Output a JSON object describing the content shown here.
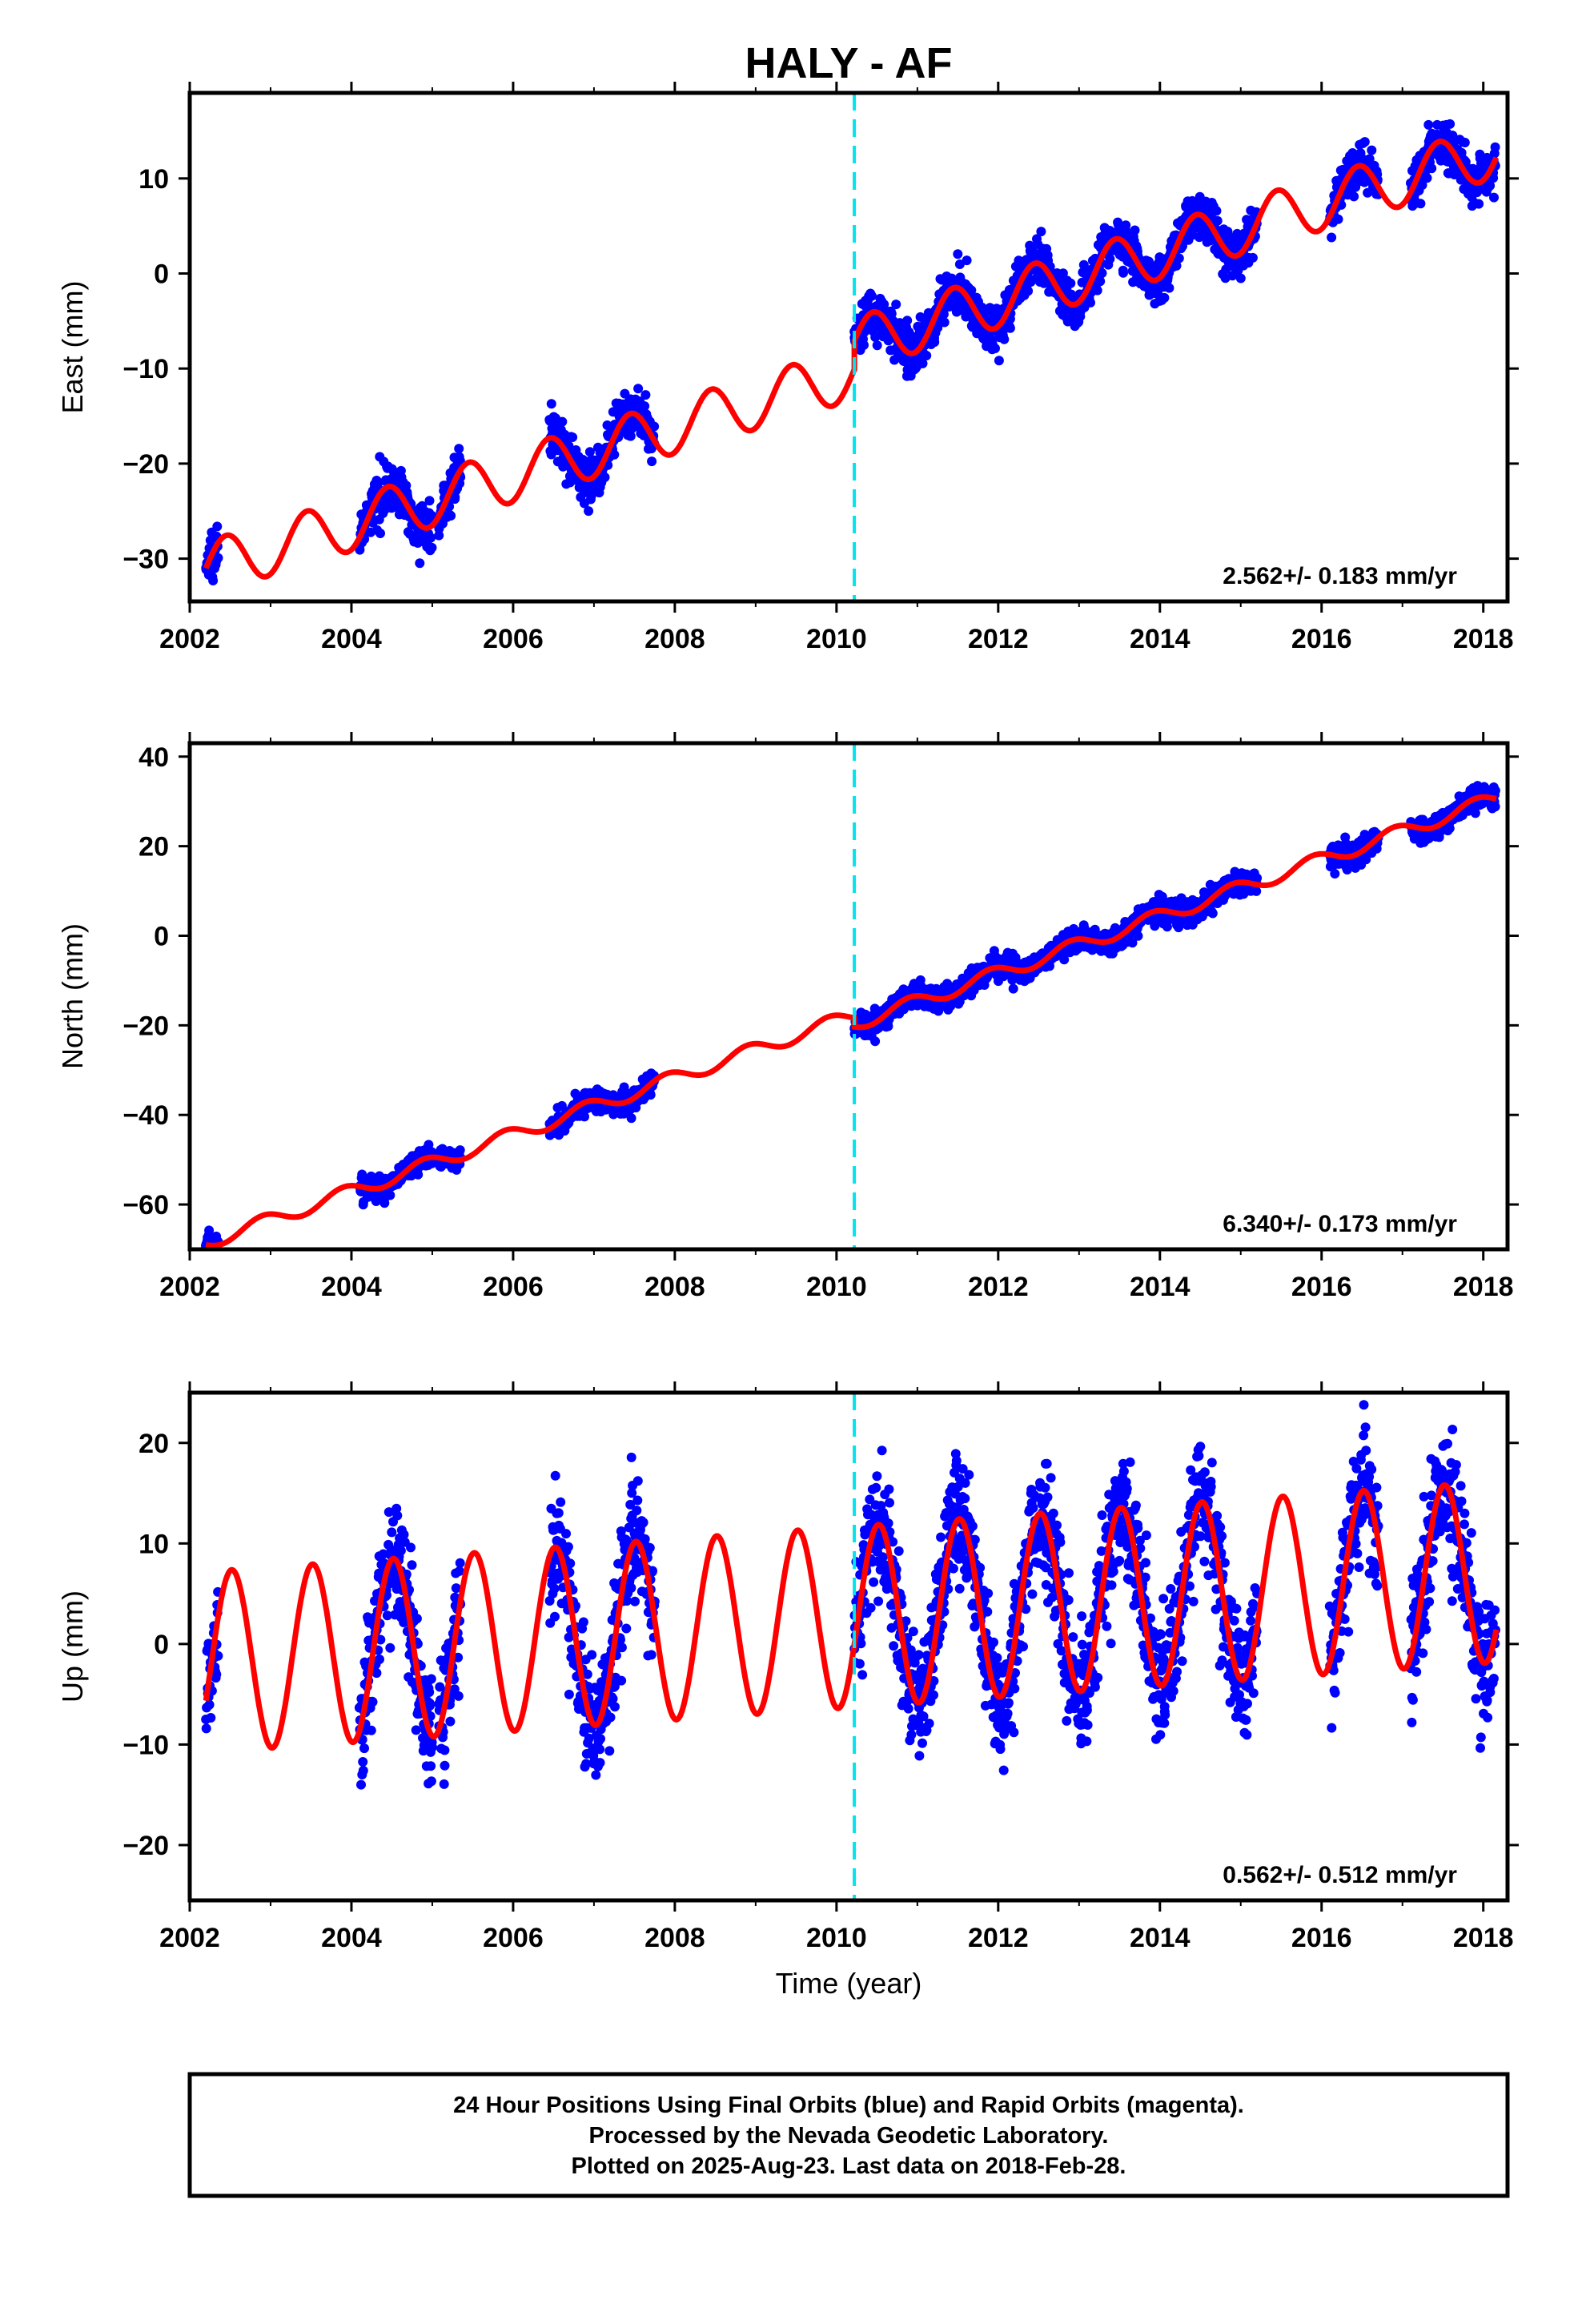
{
  "title": "HALY - AF",
  "colors": {
    "points": "#0000ff",
    "model": "#ff0000",
    "event_line": "#00e5ee",
    "frame": "#000000"
  },
  "x_axis": {
    "label": "Time (year)",
    "range": [
      2002.0,
      2018.3
    ],
    "ticks": [
      "2002",
      "2004",
      "2006",
      "2008",
      "2010",
      "2012",
      "2014",
      "2016",
      "2018"
    ]
  },
  "event_line_year": 2010.22,
  "footer": {
    "line1": "24 Hour Positions Using Final Orbits (blue) and Rapid Orbits (magenta).",
    "line2": "Processed by the Nevada Geodetic Laboratory.",
    "line3": "Plotted on 2025-Aug-23. Last data on 2018-Feb-28."
  },
  "chart_data": [
    {
      "type": "scatter",
      "component": "east",
      "ylabel": "East (mm)",
      "ylim": [
        -34.5,
        19
      ],
      "yticks": [
        "−30",
        "−20",
        "−10",
        "0",
        "10"
      ],
      "ytick_values": [
        -30,
        -20,
        -10,
        0,
        10
      ],
      "rate_text": "2.562+/- 0.183 mm/yr",
      "model": {
        "intercept": -31.0,
        "rate": 2.562,
        "annual_amp": 2.8,
        "annual_peak": 0.45,
        "offset_year": 2010.22,
        "offset": 3.0
      },
      "data_segments": [
        [
          2002.2,
          2002.35
        ],
        [
          2004.1,
          2005.0
        ],
        [
          2005.08,
          2005.35
        ],
        [
          2006.45,
          2007.05
        ],
        [
          2007.05,
          2007.75
        ],
        [
          2010.22,
          2015.2
        ],
        [
          2016.1,
          2016.7
        ],
        [
          2017.1,
          2018.15
        ]
      ],
      "scatter_sd": 1.2
    },
    {
      "type": "scatter",
      "component": "north",
      "ylabel": "North (mm)",
      "ylim": [
        -70,
        43
      ],
      "yticks": [
        "−60",
        "−40",
        "−20",
        "0",
        "20",
        "40"
      ],
      "ytick_values": [
        -60,
        -40,
        -20,
        0,
        20,
        40
      ],
      "rate_text": "6.340+/- 0.173 mm/yr",
      "model": {
        "intercept": -68.5,
        "rate": 6.34,
        "annual_amp": 1.6,
        "annual_peak": 0.9,
        "offset_year": 2010.22,
        "offset": -2.0
      },
      "data_segments": [
        [
          2002.2,
          2002.35
        ],
        [
          2004.1,
          2005.0
        ],
        [
          2005.08,
          2005.35
        ],
        [
          2006.45,
          2007.05
        ],
        [
          2007.05,
          2007.75
        ],
        [
          2010.22,
          2015.2
        ],
        [
          2016.1,
          2016.7
        ],
        [
          2017.1,
          2018.15
        ]
      ],
      "scatter_sd": 1.3
    },
    {
      "type": "scatter",
      "component": "up",
      "ylabel": "Up (mm)",
      "ylim": [
        -25.5,
        25
      ],
      "yticks": [
        "−20",
        "−10",
        "0",
        "10",
        "20"
      ],
      "ytick_values": [
        -20,
        -10,
        0,
        10,
        20
      ],
      "rate_text": "0.562+/- 0.512 mm/yr",
      "model": {
        "intercept": -1.8,
        "rate": 0.562,
        "annual_amp": 9.0,
        "annual_peak": 0.52,
        "offset_year": 2010.22,
        "offset": 0.0
      },
      "data_segments": [
        [
          2002.2,
          2002.35
        ],
        [
          2004.1,
          2005.0
        ],
        [
          2005.08,
          2005.35
        ],
        [
          2006.45,
          2007.05
        ],
        [
          2007.05,
          2007.75
        ],
        [
          2010.22,
          2015.2
        ],
        [
          2016.1,
          2016.7
        ],
        [
          2017.1,
          2018.15
        ]
      ],
      "scatter_sd": 3.0
    }
  ]
}
